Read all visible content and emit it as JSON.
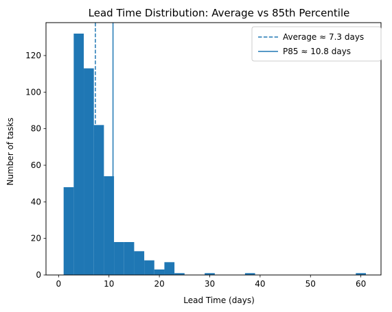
{
  "chart_data": {
    "type": "bar",
    "title": "Lead Time Distribution: Average vs 85th Percentile",
    "xlabel": "Lead Time (days)",
    "ylabel": "Number of tasks",
    "xlim": [
      -2.5,
      64.0
    ],
    "ylim": [
      0,
      138
    ],
    "x_ticks": [
      0,
      10,
      20,
      30,
      40,
      50,
      60
    ],
    "y_ticks": [
      0,
      20,
      40,
      60,
      80,
      100,
      120
    ],
    "bin_edges": [
      1.0,
      3.0,
      5.0,
      7.0,
      9.0,
      11.0,
      13.0,
      15.0,
      17.0,
      19.0,
      21.0,
      23.0,
      25.0,
      27.0,
      29.0,
      31.0,
      33.0,
      35.0,
      37.0,
      39.0,
      41.0,
      43.0,
      45.0,
      47.0,
      49.0,
      51.0,
      53.0,
      55.0,
      57.0,
      59.0,
      61.0
    ],
    "bin_counts": [
      48,
      132,
      113,
      82,
      54,
      18,
      18,
      13,
      8,
      3,
      7,
      1,
      0,
      0,
      1,
      0,
      0,
      0,
      1,
      0,
      0,
      0,
      0,
      0,
      0,
      0,
      0,
      0,
      0,
      1
    ],
    "bar_color": "#1f77b4",
    "vlines": [
      {
        "name": "Average ≈ 7.3 days",
        "x": 7.3,
        "style": "dashed",
        "color": "#1f77b4"
      },
      {
        "name": "P85 ≈ 10.8 days",
        "x": 10.8,
        "style": "solid",
        "color": "#1f77b4"
      }
    ],
    "legend_position": "top-right",
    "grid": false
  }
}
